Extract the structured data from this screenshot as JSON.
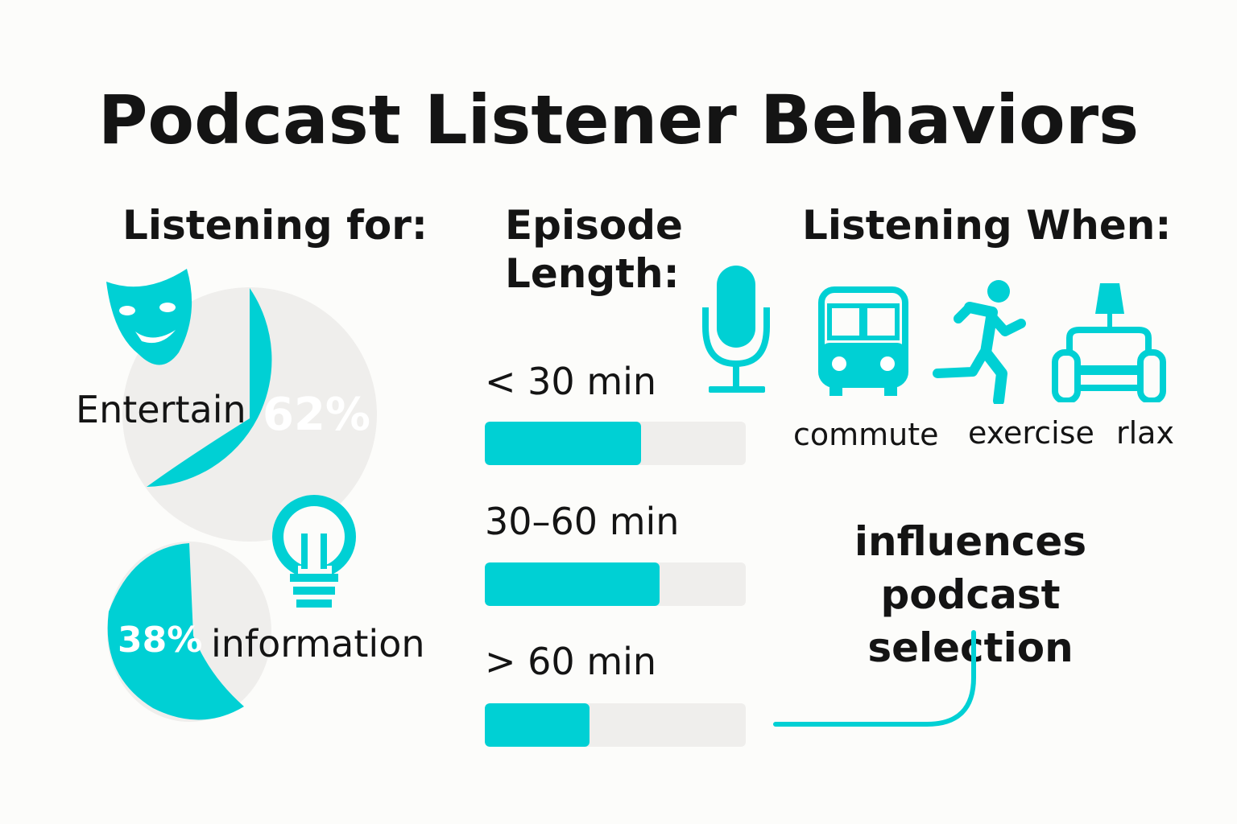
{
  "title": "Podcast Listener Behaviors",
  "colors": {
    "accent": "#00d0d4",
    "track": "#efeeec",
    "text": "#141414",
    "background": "#fcfcfa"
  },
  "listening_for": {
    "heading": "Listening for:",
    "items": [
      {
        "label": "Entertain",
        "percent": "62%",
        "value": 62,
        "icon": "theater-mask-icon"
      },
      {
        "label": "information",
        "percent": "38%",
        "value": 38,
        "icon": "lightbulb-icon"
      }
    ]
  },
  "episode_length": {
    "heading_line1": "Episode",
    "heading_line2": "Length:",
    "icon": "microphone-icon",
    "bars": [
      {
        "label": "< 30 min",
        "fill_fraction": 0.6
      },
      {
        "label": "30–60 min",
        "fill_fraction": 0.67
      },
      {
        "label": "> 60 min",
        "fill_fraction": 0.4
      }
    ]
  },
  "listening_when": {
    "heading": "Listening When:",
    "items": [
      {
        "label": "commute",
        "icon": "bus-icon"
      },
      {
        "label": "exercise",
        "icon": "running-person-icon"
      },
      {
        "label": "rlax",
        "icon": "couch-lamp-icon"
      }
    ],
    "note_line1": "influences",
    "note_line2": "podcast selection"
  }
}
